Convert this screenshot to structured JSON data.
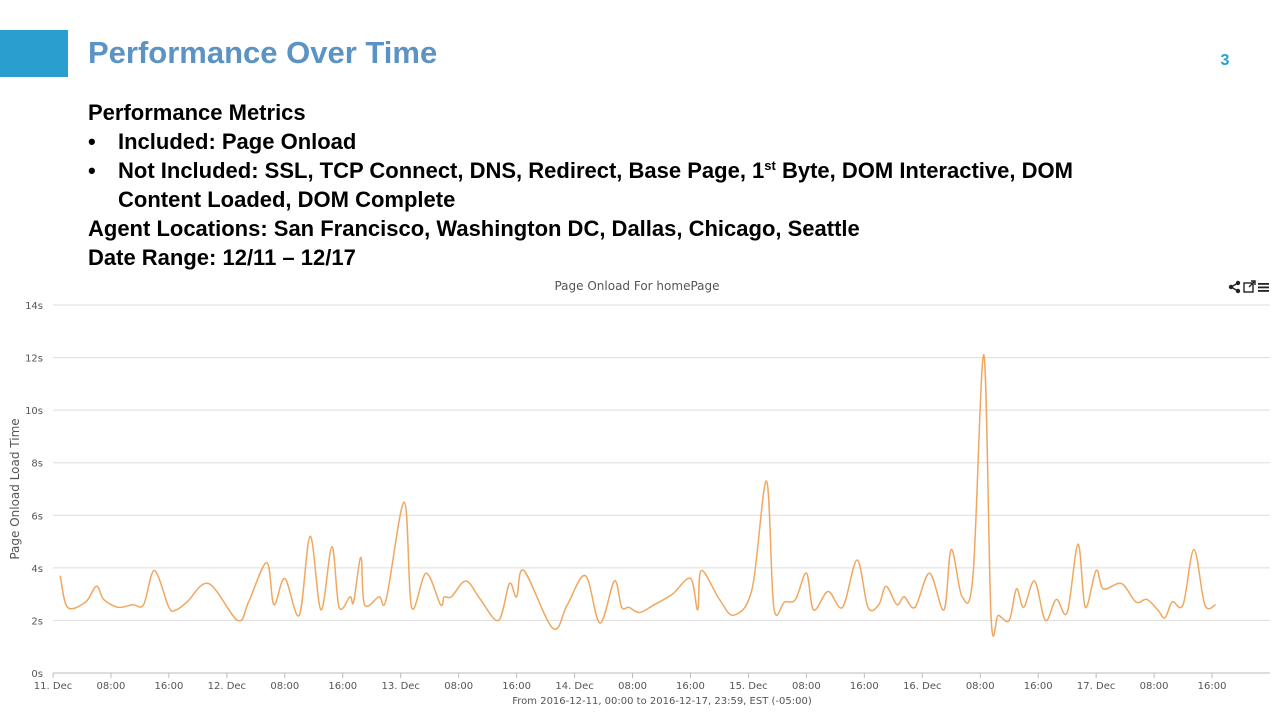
{
  "slide": {
    "title": "Performance Over Time",
    "number": "3",
    "accent_color": "#2a9fcf",
    "title_color": "#5b93c4"
  },
  "metrics": {
    "heading": "Performance Metrics",
    "bullet_1": "Included: Page Onload",
    "bullet_2_pre": "Not Included: SSL, TCP Connect, DNS, Redirect, Base Page, 1",
    "bullet_2_sup": "st",
    "bullet_2_post": " Byte, DOM Interactive, DOM",
    "bullet_2_cont": "Content Loaded, DOM Complete",
    "agents": "Agent Locations: San Francisco, Washington DC, Dallas, Chicago, Seattle",
    "date_range": "Date Range: 12/11 – 12/17"
  },
  "toolbar": {
    "share_icon": "share-icon",
    "popout_icon": "popout-icon",
    "menu_icon": "menu-icon"
  },
  "chart_data": {
    "type": "line",
    "title": "Page Onload For homePage",
    "ylabel": "Page Onload Load Time",
    "xlabel": "From 2016-12-11, 00:00 to 2016-12-17, 23:59, EST (-05:00)",
    "ylim": [
      0,
      14
    ],
    "xlim": [
      "2016-12-11 00:00",
      "2016-12-17 23:59"
    ],
    "y_ticks": [
      "0s",
      "2s",
      "4s",
      "6s",
      "8s",
      "10s",
      "12s",
      "14s"
    ],
    "x_ticks": [
      "11. Dec",
      "08:00",
      "16:00",
      "12. Dec",
      "08:00",
      "16:00",
      "13. Dec",
      "08:00",
      "16:00",
      "14. Dec",
      "08:00",
      "16:00",
      "15. Dec",
      "08:00",
      "16:00",
      "16. Dec",
      "08:00",
      "16:00",
      "17. Dec",
      "08:00",
      "16:00"
    ],
    "grid": true,
    "line_color": "#f0a860",
    "series": [
      {
        "name": "",
        "x": [
          "2016-12-11 01:00",
          "2016-12-11 02:00",
          "2016-12-11 04:30",
          "2016-12-11 06:00",
          "2016-12-11 07:00",
          "2016-12-11 09:00",
          "2016-12-11 11:00",
          "2016-12-11 12:30",
          "2016-12-11 14:00",
          "2016-12-11 16:00",
          "2016-12-11 17:00",
          "2016-12-11 18:30",
          "2016-12-11 21:30",
          "2016-12-12 01:30",
          "2016-12-12 03:00",
          "2016-12-12 05:30",
          "2016-12-12 06:30",
          "2016-12-12 08:00",
          "2016-12-12 10:00",
          "2016-12-12 11:30",
          "2016-12-12 13:00",
          "2016-12-12 14:30",
          "2016-12-12 15:30",
          "2016-12-12 17:00",
          "2016-12-12 17:30",
          "2016-12-12 18:30",
          "2016-12-12 19:00",
          "2016-12-12 21:00",
          "2016-12-12 22:00",
          "2016-12-13 00:30",
          "2016-12-13 01:30",
          "2016-12-13 03:30",
          "2016-12-13 05:30",
          "2016-12-13 06:00",
          "2016-12-13 07:00",
          "2016-12-13 09:00",
          "2016-12-13 11:00",
          "2016-12-13 13:30",
          "2016-12-13 15:00",
          "2016-12-13 16:00",
          "2016-12-13 17:00",
          "2016-12-13 21:00",
          "2016-12-13 23:00",
          "2016-12-14 01:30",
          "2016-12-14 03:30",
          "2016-12-14 05:30",
          "2016-12-14 06:30",
          "2016-12-14 07:30",
          "2016-12-14 09:00",
          "2016-12-14 11:00",
          "2016-12-14 13:30",
          "2016-12-14 16:00",
          "2016-12-14 17:00",
          "2016-12-14 17:30",
          "2016-12-14 20:00",
          "2016-12-14 22:00",
          "2016-12-15 00:30",
          "2016-12-15 02:30",
          "2016-12-15 03:30",
          "2016-12-15 05:00",
          "2016-12-15 06:30",
          "2016-12-15 08:00",
          "2016-12-15 09:00",
          "2016-12-15 11:00",
          "2016-12-15 13:00",
          "2016-12-15 15:00",
          "2016-12-15 16:30",
          "2016-12-15 18:00",
          "2016-12-15 19:00",
          "2016-12-15 20:30",
          "2016-12-15 21:30",
          "2016-12-15 23:00",
          "2016-12-16 01:00",
          "2016-12-16 03:00",
          "2016-12-16 04:00",
          "2016-12-16 05:30",
          "2016-12-16 07:00",
          "2016-12-16 08:30",
          "2016-12-16 09:30",
          "2016-12-16 10:30",
          "2016-12-16 12:00",
          "2016-12-16 13:00",
          "2016-12-16 14:00",
          "2016-12-16 15:30",
          "2016-12-16 17:00",
          "2016-12-16 18:30",
          "2016-12-16 20:00",
          "2016-12-16 21:30",
          "2016-12-16 22:30",
          "2016-12-17 00:00",
          "2016-12-17 01:00",
          "2016-12-17 03:30",
          "2016-12-17 05:30",
          "2016-12-17 07:00",
          "2016-12-17 08:30",
          "2016-12-17 09:30",
          "2016-12-17 10:30",
          "2016-12-17 12:00",
          "2016-12-17 13:30",
          "2016-12-17 15:00",
          "2016-12-17 16:30"
        ],
        "values": [
          3.7,
          2.5,
          2.7,
          3.3,
          2.8,
          2.5,
          2.6,
          2.6,
          3.9,
          2.5,
          2.4,
          2.7,
          3.4,
          2.0,
          2.7,
          4.2,
          2.6,
          3.6,
          2.2,
          5.2,
          2.4,
          4.8,
          2.5,
          2.9,
          2.7,
          4.4,
          2.6,
          2.9,
          2.8,
          6.5,
          2.5,
          3.8,
          2.6,
          2.9,
          2.9,
          3.5,
          2.8,
          2.0,
          3.4,
          2.9,
          3.9,
          1.7,
          2.6,
          3.7,
          1.9,
          3.5,
          2.5,
          2.5,
          2.3,
          2.6,
          3.0,
          3.6,
          2.4,
          3.9,
          2.8,
          2.2,
          3.2,
          7.3,
          2.5,
          2.7,
          2.8,
          3.8,
          2.4,
          3.1,
          2.5,
          4.3,
          2.5,
          2.6,
          3.3,
          2.6,
          2.9,
          2.5,
          3.8,
          2.4,
          4.7,
          2.9,
          3.7,
          12.1,
          2.1,
          2.2,
          2.0,
          3.2,
          2.5,
          3.5,
          2.0,
          2.8,
          2.3,
          4.9,
          2.5,
          3.9,
          3.2,
          3.4,
          2.7,
          2.8,
          2.4,
          2.1,
          2.7,
          2.6,
          4.7,
          2.6,
          2.6
        ]
      }
    ]
  }
}
